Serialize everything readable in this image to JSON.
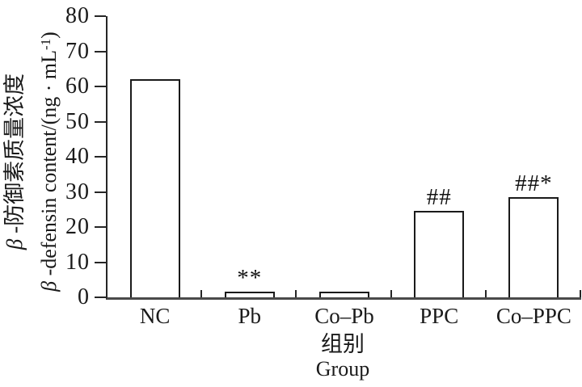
{
  "figure": {
    "ylabel": {
      "zh_beta": "β",
      "zh_rest": " -防御素质量浓度",
      "en_beta": "β",
      "en_pre": " -defensin content/(ng · mL",
      "en_sup": "-1",
      "en_post": ")"
    },
    "xlabel": {
      "zh": "组别",
      "en": "Group"
    }
  },
  "chart_data": {
    "type": "bar",
    "categories": [
      "NC",
      "Pb",
      "Co–Pb",
      "PPC",
      "Co–PPC"
    ],
    "values": [
      62,
      1.5,
      1.5,
      24.5,
      28.5
    ],
    "annotations": [
      "",
      "**",
      "",
      "##",
      "##*"
    ],
    "title": "",
    "xlabel": "组别 / Group",
    "ylabel": "β-防御素质量浓度 β-defensin content/(ng·mL⁻¹)",
    "ylim": [
      0,
      80
    ],
    "ytick_step": 10,
    "grid": false,
    "legend": false,
    "bar_fill": "#ffffff",
    "bar_border": "#1a1a1a",
    "axis_color": "#262626"
  }
}
